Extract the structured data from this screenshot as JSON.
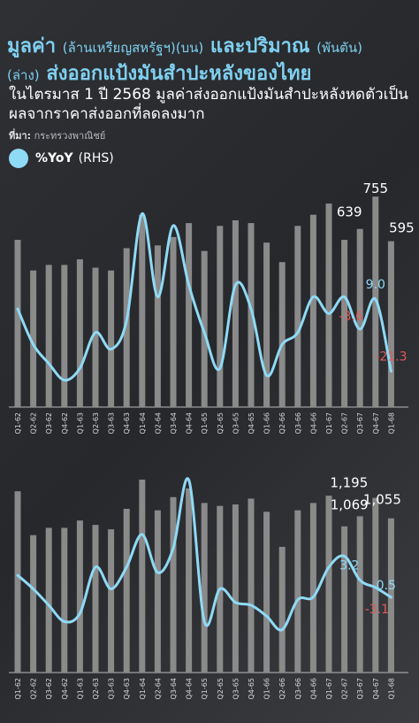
{
  "title": {
    "part1": "มูลค่า",
    "part1_small": "(ล้านเหรียญสหรัฐฯ)(บน)",
    "part2": "และปริมาณ",
    "part2_small": "(พันตัน)",
    "part3_small": "(ล่าง)",
    "part3": "ส่งออกแป้งมันสำปะหลังของไทย"
  },
  "subtitle": "ในไตรมาส 1 ปี 2568 มูลค่าส่งออกแป้งมันสำปะหลังหดตัวเป็นผลจากราคาส่งออกที่ลดลงมาก",
  "source": {
    "label": "ที่มา:",
    "text": "กระทรวงพาณิชย์"
  },
  "legend": {
    "label": "%YoY",
    "note": "(RHS)"
  },
  "colors": {
    "bars": "#8a8a8a",
    "line": "#8fdaf5",
    "negative": "#e05a5a",
    "positive": "#8fdaf5"
  },
  "chart_data": [
    {
      "type": "bar",
      "name": "value",
      "categories": [
        "Q1-62",
        "Q2-62",
        "Q3-62",
        "Q4-62",
        "Q1-63",
        "Q2-63",
        "Q3-63",
        "Q4-63",
        "Q1-64",
        "Q2-64",
        "Q3-64",
        "Q4-64",
        "Q1-65",
        "Q2-65",
        "Q3-65",
        "Q4-65",
        "Q1-66",
        "Q2-66",
        "Q3-66",
        "Q4-66",
        "Q1-67",
        "Q2-67",
        "Q3-67",
        "Q4-67",
        "Q1-68"
      ],
      "values": [
        600,
        490,
        510,
        510,
        530,
        500,
        490,
        570,
        690,
        580,
        610,
        660,
        560,
        650,
        670,
        660,
        590,
        520,
        650,
        690,
        730,
        600,
        639,
        755,
        595
      ],
      "yoy": [
        5,
        -10,
        -18,
        -25,
        -20,
        -5,
        -12,
        0,
        45,
        10,
        40,
        15,
        -5,
        -20,
        15,
        5,
        -23,
        -10,
        -5,
        10,
        3,
        10,
        -3.6,
        9.0,
        -21.3
      ],
      "data_labels": {
        "bars": [
          "639",
          "755",
          "595"
        ],
        "yoy": [
          "-3.6",
          "9.0",
          "-21.3"
        ]
      }
    },
    {
      "type": "bar",
      "name": "volume",
      "categories": [
        "Q1-62",
        "Q2-62",
        "Q3-62",
        "Q4-62",
        "Q1-63",
        "Q2-63",
        "Q3-63",
        "Q4-63",
        "Q1-64",
        "Q2-64",
        "Q3-64",
        "Q4-64",
        "Q1-65",
        "Q2-65",
        "Q3-65",
        "Q4-65",
        "Q1-66",
        "Q2-66",
        "Q3-66",
        "Q4-66",
        "Q1-67",
        "Q2-67",
        "Q3-67",
        "Q4-67",
        "Q1-68"
      ],
      "values": [
        1240,
        940,
        990,
        990,
        1040,
        1010,
        980,
        1120,
        1320,
        1110,
        1200,
        1260,
        1160,
        1140,
        1150,
        1190,
        1100,
        860,
        1110,
        1160,
        1210,
        1000,
        1069,
        1195,
        1055
      ],
      "yoy": [
        5,
        0,
        -6,
        -12,
        -9,
        8,
        0,
        8,
        20,
        6,
        15,
        40,
        -12,
        0,
        -5,
        -6,
        -10,
        -15,
        -4,
        -3,
        8,
        12,
        3.2,
        0.5,
        -3.1
      ],
      "data_labels": {
        "bars": [
          "1,069",
          "1,195",
          "1,055"
        ],
        "yoy": [
          "3.2",
          "0.5",
          "-3.1"
        ]
      }
    }
  ]
}
